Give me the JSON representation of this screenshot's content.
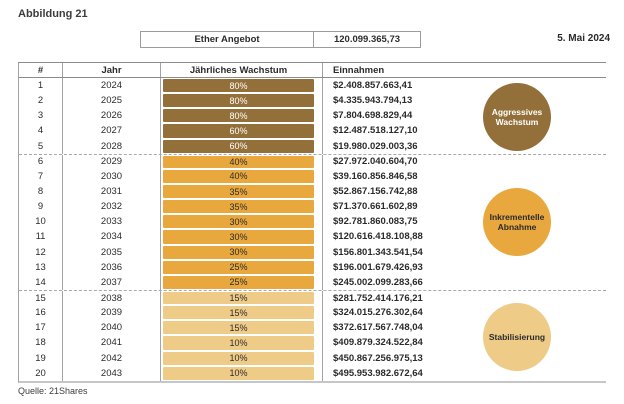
{
  "header": {
    "figure_label": "Abbildung 21",
    "supply_label": "Ether Angebot",
    "supply_value": "120.099.365,73",
    "date": "5. Mai 2024"
  },
  "table": {
    "columns": [
      "#",
      "Jahr",
      "Jährliches Wachstum",
      "Einnahmen"
    ],
    "rows": [
      {
        "num": "1",
        "year": "2024",
        "growth": "80%",
        "revenue": "$2.408.857.663,41",
        "phase": "aggressive"
      },
      {
        "num": "2",
        "year": "2025",
        "growth": "80%",
        "revenue": "$4.335.943.794,13",
        "phase": "aggressive"
      },
      {
        "num": "3",
        "year": "2026",
        "growth": "80%",
        "revenue": "$7.804.698.829,44",
        "phase": "aggressive"
      },
      {
        "num": "4",
        "year": "2027",
        "growth": "60%",
        "revenue": "$12.487.518.127,10",
        "phase": "aggressive"
      },
      {
        "num": "5",
        "year": "2028",
        "growth": "60%",
        "revenue": "$19.980.029.003,36",
        "phase": "aggressive"
      },
      {
        "num": "6",
        "year": "2029",
        "growth": "40%",
        "revenue": "$27.972.040.604,70",
        "phase": "incremental"
      },
      {
        "num": "7",
        "year": "2030",
        "growth": "40%",
        "revenue": "$39.160.856.846,58",
        "phase": "incremental"
      },
      {
        "num": "8",
        "year": "2031",
        "growth": "35%",
        "revenue": "$52.867.156.742,88",
        "phase": "incremental"
      },
      {
        "num": "9",
        "year": "2032",
        "growth": "35%",
        "revenue": "$71.370.661.602,89",
        "phase": "incremental"
      },
      {
        "num": "10",
        "year": "2033",
        "growth": "30%",
        "revenue": "$92.781.860.083,75",
        "phase": "incremental"
      },
      {
        "num": "11",
        "year": "2034",
        "growth": "30%",
        "revenue": "$120.616.418.108,88",
        "phase": "incremental"
      },
      {
        "num": "12",
        "year": "2035",
        "growth": "30%",
        "revenue": "$156.801.343.541,54",
        "phase": "incremental"
      },
      {
        "num": "13",
        "year": "2036",
        "growth": "25%",
        "revenue": "$196.001.679.426,93",
        "phase": "incremental"
      },
      {
        "num": "14",
        "year": "2037",
        "growth": "25%",
        "revenue": "$245.002.099.283,66",
        "phase": "incremental"
      },
      {
        "num": "15",
        "year": "2038",
        "growth": "15%",
        "revenue": "$281.752.414.176,21",
        "phase": "stable"
      },
      {
        "num": "16",
        "year": "2039",
        "growth": "15%",
        "revenue": "$324.015.276.302,64",
        "phase": "stable"
      },
      {
        "num": "17",
        "year": "2040",
        "growth": "15%",
        "revenue": "$372.617.567.748,04",
        "phase": "stable"
      },
      {
        "num": "18",
        "year": "2041",
        "growth": "10%",
        "revenue": "$409.879.324.522,84",
        "phase": "stable"
      },
      {
        "num": "19",
        "year": "2042",
        "growth": "10%",
        "revenue": "$450.867.256.975,13",
        "phase": "stable"
      },
      {
        "num": "20",
        "year": "2043",
        "growth": "10%",
        "revenue": "$495.953.982.672,64",
        "phase": "stable"
      }
    ]
  },
  "phases": [
    {
      "id": "aggressive",
      "badge_label": "Aggressives Wachstum",
      "color": "#93703a",
      "text_color": "#ffffff"
    },
    {
      "id": "incremental",
      "badge_label": "Inkrementelle Abnahme",
      "color": "#e9a83e",
      "text_color": "#2b2b2b"
    },
    {
      "id": "stable",
      "badge_label": "Stabilisierung",
      "color": "#eecb87",
      "text_color": "#2b2b2b"
    }
  ],
  "footer": {
    "source": "Quelle: 21Shares"
  },
  "chart_data": {
    "type": "table",
    "title": "Abbildung 21",
    "ether_supply": {
      "label": "Ether Angebot",
      "value": "120.099.365,73",
      "date": "5. Mai 2024"
    },
    "columns": [
      "#",
      "Jahr",
      "Jährliches Wachstum",
      "Einnahmen"
    ],
    "rows": [
      [
        1,
        2024,
        "80%",
        "$2.408.857.663,41"
      ],
      [
        2,
        2025,
        "80%",
        "$4.335.943.794,13"
      ],
      [
        3,
        2026,
        "80%",
        "$7.804.698.829,44"
      ],
      [
        4,
        2027,
        "60%",
        "$12.487.518.127,10"
      ],
      [
        5,
        2028,
        "60%",
        "$19.980.029.003,36"
      ],
      [
        6,
        2029,
        "40%",
        "$27.972.040.604,70"
      ],
      [
        7,
        2030,
        "40%",
        "$39.160.856.846,58"
      ],
      [
        8,
        2031,
        "35%",
        "$52.867.156.742,88"
      ],
      [
        9,
        2032,
        "35%",
        "$71.370.661.602,89"
      ],
      [
        10,
        2033,
        "30%",
        "$92.781.860.083,75"
      ],
      [
        11,
        2034,
        "30%",
        "$120.616.418.108,88"
      ],
      [
        12,
        2035,
        "30%",
        "$156.801.343.541,54"
      ],
      [
        13,
        2036,
        "25%",
        "$196.001.679.426,93"
      ],
      [
        14,
        2037,
        "25%",
        "$245.002.099.283,66"
      ],
      [
        15,
        2038,
        "15%",
        "$281.752.414.176,21"
      ],
      [
        16,
        2039,
        "15%",
        "$324.015.276.302,64"
      ],
      [
        17,
        2040,
        "15%",
        "$372.617.567.748,04"
      ],
      [
        18,
        2041,
        "10%",
        "$409.879.324.522,84"
      ],
      [
        19,
        2042,
        "10%",
        "$450.867.256.975,13"
      ],
      [
        20,
        2043,
        "10%",
        "$495.953.982.672,64"
      ]
    ],
    "phase_groups": [
      {
        "label": "Aggressives Wachstum",
        "row_range": [
          1,
          5
        ]
      },
      {
        "label": "Inkrementelle Abnahme",
        "row_range": [
          6,
          14
        ]
      },
      {
        "label": "Stabilisierung",
        "row_range": [
          15,
          20
        ]
      }
    ],
    "source": "Quelle: 21Shares"
  }
}
